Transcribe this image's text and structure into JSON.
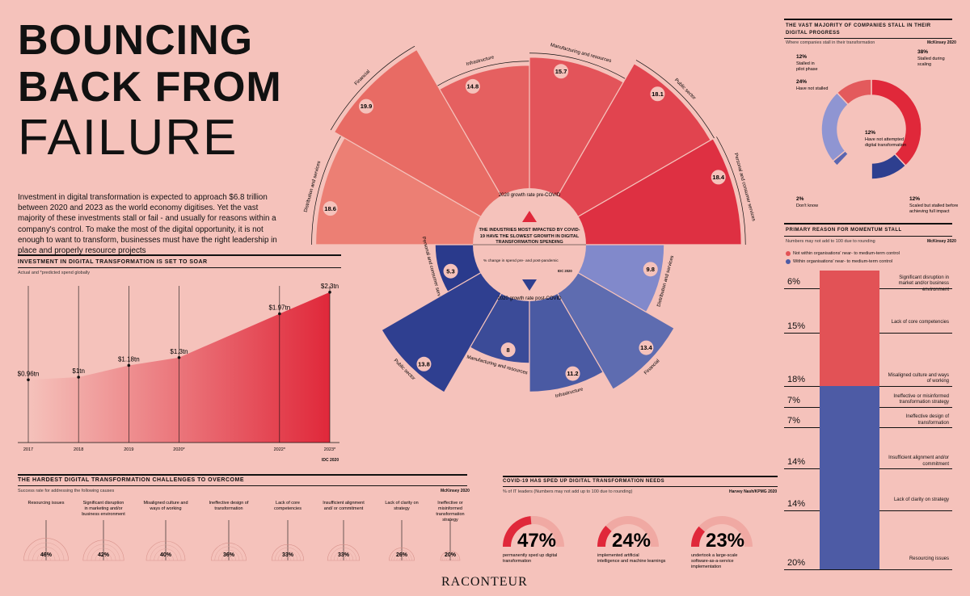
{
  "header": {
    "line1": "BOUNCING",
    "line2": "BACK FROM",
    "line3": "FAILURE",
    "intro": "Investment in digital transformation is expected to approach $6.8 trillion between 2020 and 2023 as the world economy digitises. Yet the vast majority of these investments stall or fail - and usually for reasons within a company's control. To make the most of the digital opportunity, it is not enough to want to transform, businesses must have the right leadership in place and properly resource projects"
  },
  "colors": {
    "bg": "#f5c2bb",
    "red": "#e03340",
    "blue": "#2e3f8f",
    "lightblue": "#8f95d2",
    "salmon": "#ea6a63"
  },
  "investment": {
    "title": "Investment in digital transformation is set to soar",
    "subtitle": "Actual and *predicted spend globally",
    "source": "IDC 2020",
    "chart_data": {
      "type": "area",
      "x": [
        "2017",
        "2018",
        "2019",
        "2020*",
        "2022*",
        "2023*"
      ],
      "xpos": [
        2017,
        2018,
        2019,
        2020,
        2022,
        2023
      ],
      "values": [
        0.96,
        1.0,
        1.18,
        1.3,
        1.97,
        2.3
      ],
      "labels": [
        "$0.96tn",
        "$1tn",
        "$1.18tn",
        "$1.3tn",
        "$1.97tn",
        "$2.3tn"
      ],
      "ylim": [
        0,
        2.3
      ]
    }
  },
  "industries": {
    "title": "The industries most impacted by COVID-19 have the slowest growth in digital transformation spending",
    "subtitle": "% change in spend pre- and post-pandemic",
    "source": "IDC 2020",
    "pre_label": "2020 growth rate pre-COVID",
    "post_label": "2020 growth rate post-COVID",
    "chart_data": [
      {
        "type": "bar",
        "title": "2020 growth rate pre-COVID",
        "categories": [
          "Distribution and services",
          "Financial",
          "Infrastructure",
          "Manufacturing and resources",
          "Public sector",
          "Personal and consumer services"
        ],
        "values": [
          18.6,
          19.9,
          14.8,
          15.7,
          18.1,
          18.4
        ]
      },
      {
        "type": "bar",
        "title": "2020 growth rate post-COVID",
        "categories": [
          "Personal and consumer services",
          "Public sector",
          "Manufacturing and resources",
          "Infrastructure",
          "Financial",
          "Distribution and services"
        ],
        "values": [
          5.3,
          13.8,
          8,
          11.2,
          13.4,
          9.8
        ]
      }
    ]
  },
  "stall": {
    "title": "The vast majority of companies stall in their digital progress",
    "subtitle": "Where companies stall in their transformation",
    "source": "McKinsey 2020",
    "chart_data": {
      "type": "pie",
      "categories": [
        "Stalled during scaling",
        "Scaled but stalled before achieving full impact",
        "Have not attempted digital transformation",
        "Don't know",
        "Have not stalled",
        "Stalled in pilot phase"
      ],
      "values": [
        38,
        12,
        12,
        2,
        24,
        12
      ],
      "labels": [
        "38%",
        "12%",
        "12%",
        "2%",
        "24%",
        "12%"
      ]
    }
  },
  "momentum": {
    "title": "Primary reason for momentum stall",
    "subtitle": "Numbers may not add to 100 due to rounding",
    "source": "McKinsey 2020",
    "legend": [
      "Not within organisations' near- to medium-term control",
      "Within organisations' near- to medium-term control"
    ],
    "chart_data": {
      "type": "bar",
      "categories": [
        "Significant disruption in market and/or business environment",
        "Lack of core competencies",
        "Misaligned culture and ways of working",
        "Ineffective or misinformed transformation strategy",
        "Ineffective design of transformation",
        "Insufficient alignment and/or commitment",
        "Lack of clarity on strategy",
        "Resourcing issues"
      ],
      "values": [
        6,
        15,
        18,
        7,
        7,
        14,
        14,
        20
      ],
      "labels": [
        "6%",
        "15%",
        "18%",
        "7%",
        "7%",
        "14%",
        "14%",
        "20%"
      ],
      "series_group": [
        "not-within",
        "not-within",
        "not-within",
        "within",
        "within",
        "within",
        "within",
        "within"
      ]
    }
  },
  "challenges": {
    "title": "The hardest digital transformation challenges to overcome",
    "subtitle": "Success rate for addressing the following causes",
    "source": "McKinsey 2020",
    "chart_data": {
      "type": "bar",
      "categories": [
        "Resourcing issues",
        "Significant disruption in marketing and/or business environment",
        "Misaligned culture and ways of working",
        "Ineffective design of transformation",
        "Lack of core competencies",
        "Insufficient alignment and/ or commitment",
        "Lack of clarity on strategy",
        "Ineffective or misinformed transformation strategy"
      ],
      "values": [
        46,
        42,
        40,
        36,
        33,
        33,
        26,
        20
      ],
      "labels": [
        "46%",
        "42%",
        "40%",
        "36%",
        "33%",
        "33%",
        "26%",
        "20%"
      ]
    }
  },
  "covid": {
    "title": "COVID-19 has sped up digital transformation needs",
    "subtitle": "% of IT leaders (Numbers may not add up to 100 due to rounding)",
    "source": "Harvey Nash/KPMG 2020",
    "chart_data": {
      "type": "pie",
      "categories": [
        "permanently sped up digital transformation",
        "implemented artificial intelligence and machine learnings",
        "undertook a large-scale software-as-a-service implementation"
      ],
      "values": [
        47,
        24,
        23
      ],
      "labels": [
        "47%",
        "24%",
        "23%"
      ]
    }
  },
  "footer": {
    "brand": "RACONTEUR"
  }
}
